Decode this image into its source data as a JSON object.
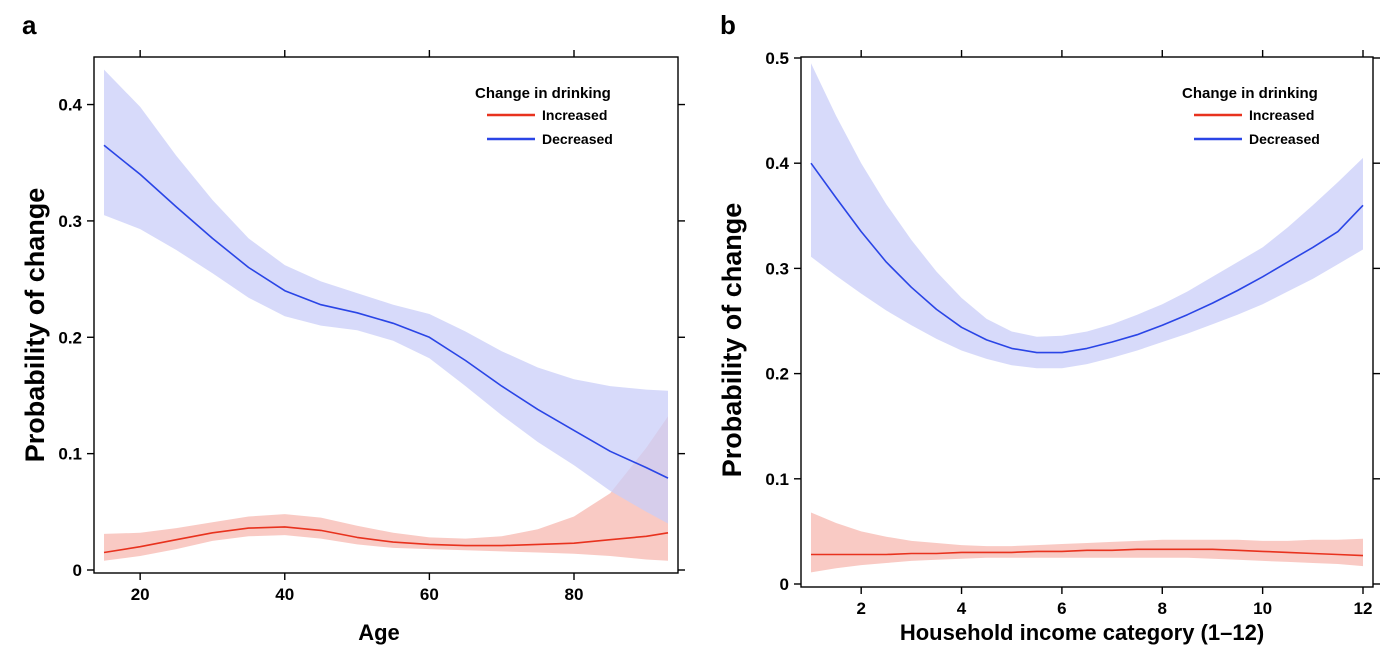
{
  "chart_data": [
    {
      "panel": "a",
      "type": "line",
      "title": "",
      "xlabel": "Age",
      "ylabel": "Probability of change",
      "xlim": [
        15,
        93
      ],
      "ylim": [
        0,
        0.44
      ],
      "xticks": [
        20,
        40,
        60,
        80
      ],
      "yticks": [
        0,
        0.1,
        0.2,
        0.3,
        0.4
      ],
      "ytick_labels": [
        "0",
        "0.1",
        "0.2",
        "0.3",
        "0.4"
      ],
      "legend": {
        "title": "Change in drinking",
        "placement": "top-right",
        "entries": [
          "Increased",
          "Decreased"
        ]
      },
      "x": [
        15,
        20,
        25,
        30,
        35,
        40,
        45,
        50,
        55,
        60,
        65,
        70,
        75,
        80,
        85,
        90,
        93
      ],
      "series": [
        {
          "name": "Increased",
          "color": "#e8321e",
          "band_color": "#f7b8b0",
          "values": [
            0.015,
            0.02,
            0.026,
            0.032,
            0.036,
            0.037,
            0.034,
            0.028,
            0.024,
            0.022,
            0.021,
            0.021,
            0.022,
            0.023,
            0.026,
            0.029,
            0.032
          ],
          "lower": [
            0.008,
            0.012,
            0.018,
            0.025,
            0.029,
            0.03,
            0.027,
            0.022,
            0.019,
            0.018,
            0.017,
            0.016,
            0.015,
            0.014,
            0.012,
            0.009,
            0.008
          ],
          "upper": [
            0.031,
            0.032,
            0.036,
            0.041,
            0.046,
            0.048,
            0.045,
            0.038,
            0.032,
            0.028,
            0.027,
            0.029,
            0.035,
            0.046,
            0.066,
            0.105,
            0.132
          ]
        },
        {
          "name": "Decreased",
          "color": "#2a45e6",
          "band_color": "#c9cdf8",
          "values": [
            0.365,
            0.34,
            0.312,
            0.285,
            0.26,
            0.24,
            0.228,
            0.221,
            0.212,
            0.2,
            0.18,
            0.158,
            0.138,
            0.12,
            0.102,
            0.088,
            0.079
          ],
          "lower": [
            0.305,
            0.293,
            0.275,
            0.255,
            0.234,
            0.218,
            0.21,
            0.206,
            0.197,
            0.182,
            0.158,
            0.133,
            0.11,
            0.09,
            0.068,
            0.05,
            0.04
          ],
          "upper": [
            0.43,
            0.398,
            0.356,
            0.318,
            0.285,
            0.262,
            0.248,
            0.238,
            0.228,
            0.22,
            0.205,
            0.188,
            0.174,
            0.164,
            0.158,
            0.155,
            0.154
          ]
        }
      ]
    },
    {
      "panel": "b",
      "type": "line",
      "title": "",
      "xlabel": "Household income category (1–12)",
      "ylabel": "Probability of change",
      "xlim": [
        1,
        12
      ],
      "ylim": [
        0,
        0.5
      ],
      "xticks": [
        2,
        4,
        6,
        8,
        10,
        12
      ],
      "yticks": [
        0,
        0.1,
        0.2,
        0.3,
        0.4,
        0.5
      ],
      "ytick_labels": [
        "0",
        "0.1",
        "0.2",
        "0.3",
        "0.4",
        "0.5"
      ],
      "legend": {
        "title": "Change in drinking",
        "placement": "top-right",
        "entries": [
          "Increased",
          "Decreased"
        ]
      },
      "x": [
        1,
        1.5,
        2,
        2.5,
        3,
        3.5,
        4,
        4.5,
        5,
        5.5,
        6,
        6.5,
        7,
        7.5,
        8,
        8.5,
        9,
        9.5,
        10,
        10.5,
        11,
        11.5,
        12
      ],
      "series": [
        {
          "name": "Increased",
          "color": "#e8321e",
          "band_color": "#f7b8b0",
          "values": [
            0.028,
            0.028,
            0.028,
            0.028,
            0.029,
            0.029,
            0.03,
            0.03,
            0.03,
            0.031,
            0.031,
            0.032,
            0.032,
            0.033,
            0.033,
            0.033,
            0.033,
            0.032,
            0.031,
            0.03,
            0.029,
            0.028,
            0.027
          ],
          "lower": [
            0.011,
            0.015,
            0.018,
            0.02,
            0.022,
            0.023,
            0.024,
            0.025,
            0.025,
            0.025,
            0.025,
            0.025,
            0.025,
            0.025,
            0.025,
            0.025,
            0.024,
            0.023,
            0.022,
            0.021,
            0.02,
            0.019,
            0.017
          ],
          "upper": [
            0.068,
            0.058,
            0.05,
            0.045,
            0.041,
            0.039,
            0.037,
            0.036,
            0.036,
            0.037,
            0.038,
            0.039,
            0.04,
            0.041,
            0.042,
            0.042,
            0.042,
            0.042,
            0.041,
            0.041,
            0.042,
            0.042,
            0.043
          ]
        },
        {
          "name": "Decreased",
          "color": "#2a45e6",
          "band_color": "#c9cdf8",
          "values": [
            0.4,
            0.367,
            0.335,
            0.306,
            0.282,
            0.261,
            0.244,
            0.232,
            0.224,
            0.22,
            0.22,
            0.224,
            0.23,
            0.237,
            0.246,
            0.256,
            0.267,
            0.279,
            0.292,
            0.306,
            0.32,
            0.335,
            0.36
          ],
          "lower": [
            0.311,
            0.293,
            0.276,
            0.26,
            0.246,
            0.233,
            0.222,
            0.214,
            0.208,
            0.205,
            0.205,
            0.209,
            0.215,
            0.222,
            0.23,
            0.238,
            0.247,
            0.256,
            0.266,
            0.278,
            0.29,
            0.304,
            0.318
          ],
          "upper": [
            0.495,
            0.445,
            0.4,
            0.361,
            0.327,
            0.297,
            0.272,
            0.252,
            0.24,
            0.235,
            0.236,
            0.24,
            0.247,
            0.256,
            0.266,
            0.278,
            0.292,
            0.306,
            0.32,
            0.339,
            0.36,
            0.382,
            0.405
          ]
        }
      ]
    }
  ]
}
